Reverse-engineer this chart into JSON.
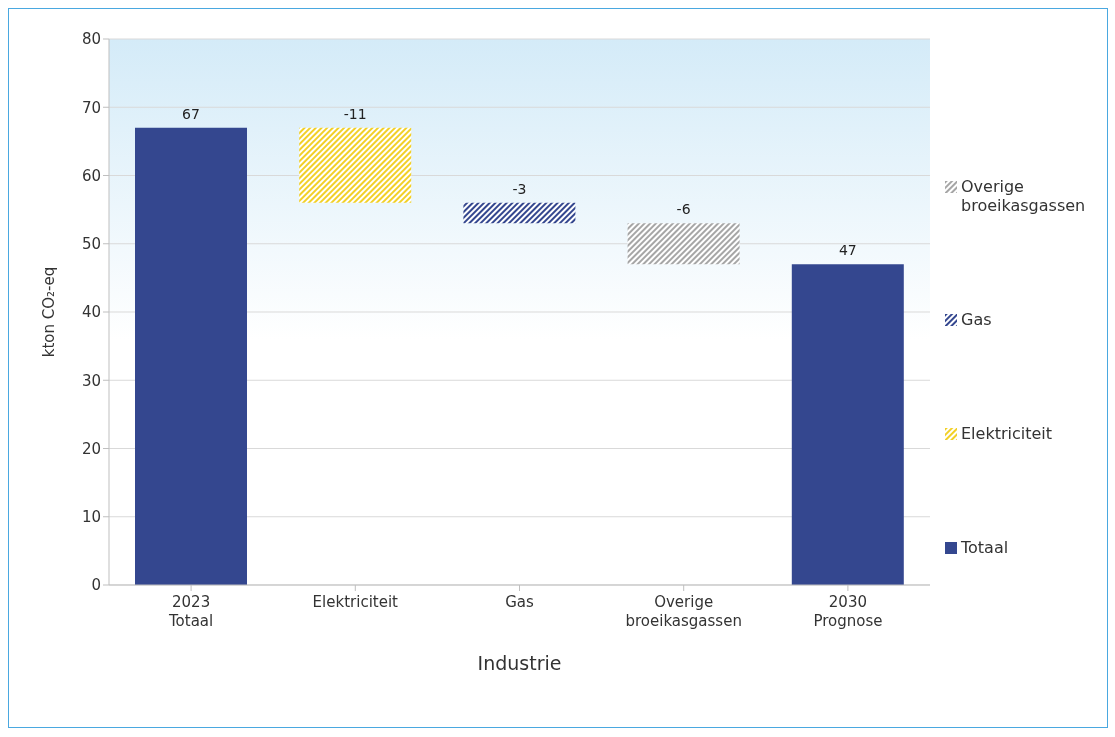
{
  "chart_data": {
    "type": "bar",
    "xlabel": "Industrie",
    "ylabel": "kton CO₂-eq",
    "categories": [
      "2023\nTotaal",
      "Elektriciteit",
      "Gas",
      "Overige\nbroeikasgassen",
      "2030\nPrognose"
    ],
    "stacked": true,
    "series": [
      {
        "name": "Totaal",
        "color": "#34478f",
        "values": [
          67,
          null,
          null,
          null,
          47
        ],
        "base": [
          0,
          null,
          null,
          null,
          0
        ]
      },
      {
        "name": "Elektriciteit",
        "color": "#f2d027",
        "values": [
          null,
          -11,
          null,
          null,
          null
        ],
        "base": [
          null,
          67,
          null,
          null,
          null
        ]
      },
      {
        "name": "Gas",
        "color": "#34478f",
        "values": [
          null,
          null,
          -3,
          null,
          null
        ],
        "base": [
          null,
          null,
          56,
          null,
          null
        ]
      },
      {
        "name": "Overige broeikasgassen",
        "color": "#a6a6a6",
        "values": [
          null,
          null,
          null,
          -6,
          null
        ],
        "base": [
          null,
          null,
          null,
          53,
          null
        ]
      }
    ],
    "ylim": [
      0,
      80
    ],
    "yticks": [
      0,
      10,
      20,
      30,
      40,
      50,
      60,
      70,
      80
    ],
    "grid": "y",
    "legend": "right",
    "data_labels": true
  }
}
